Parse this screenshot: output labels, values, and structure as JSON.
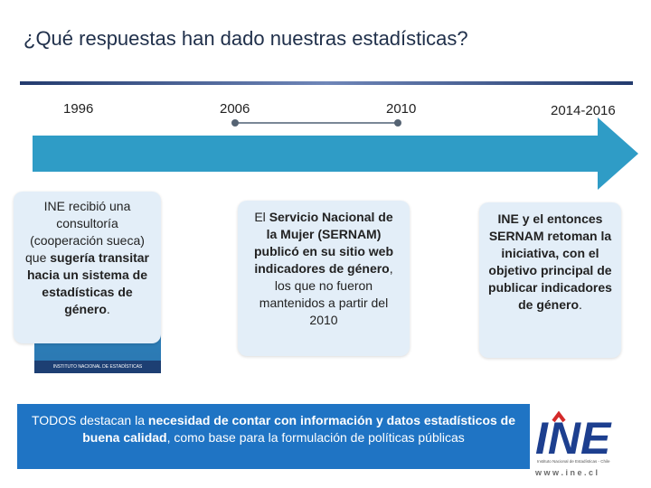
{
  "slide": {
    "title": "¿Qué respuestas han dado nuestras estadísticas?"
  },
  "timeline": {
    "years": [
      "1996",
      "2006",
      "2010",
      "2014-2016"
    ]
  },
  "cards": {
    "c1996": {
      "p1": "INE recibió una consultoría (cooperación sueca) que",
      "p2": "sugería transitar hacia un sistema de estadísticas de género",
      "p3": "."
    },
    "c2006": {
      "p1": "El ",
      "p2": "Servicio Nacional de la Mujer (SERNAM) publicó en su sitio web indicadores de género",
      "p3": ", los que no fueron mantenidos a partir del 2010"
    },
    "c2014": {
      "p1": "INE y el entonces SERNAM retoman la iniciativa, con el objetivo principal de publicar indicadores de género",
      "p2": "."
    }
  },
  "book": {
    "strip_text": "INSTITUTO NACIONAL DE ESTADÍSTICAS"
  },
  "bottom": {
    "t1": "TODOS destacan la ",
    "t2": "necesidad de contar con información y datos estadísticos de buena calidad",
    "t3": ", como base para la formulación de políticas públicas"
  },
  "logo": {
    "brand": "INE",
    "subtitle": "Instituto Nacional de Estadísticas - Chile",
    "url": "w w w . i n e . c l"
  },
  "colors": {
    "arrow": "#2f9cc6",
    "bottom_box": "#1f74c4",
    "card_bg": "#e3eef8"
  }
}
